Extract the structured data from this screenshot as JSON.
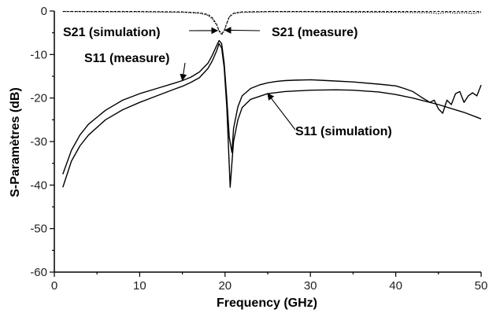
{
  "chart_data": {
    "type": "line",
    "title": "",
    "xlabel": "Frequency (GHz)",
    "ylabel": "S-Paramètres (dB)",
    "xlim": [
      0,
      50
    ],
    "ylim": [
      -60,
      0
    ],
    "xticks": [
      0,
      10,
      20,
      30,
      40,
      50
    ],
    "yticks": [
      0,
      -10,
      -20,
      -30,
      -40,
      -50,
      -60
    ],
    "xtick_labels": [
      "0",
      "10",
      "20",
      "30",
      "40",
      "50"
    ],
    "ytick_labels": [
      "0",
      "-10",
      "-20",
      "-30",
      "-40",
      "-50",
      "-60"
    ],
    "grid": false,
    "series": [
      {
        "name": "S21 (simulation)",
        "style": "dashed",
        "x": [
          1,
          5,
          10,
          15,
          17,
          18,
          18.5,
          19,
          19.3,
          19.6,
          19.9,
          20.2,
          20.5,
          21,
          22,
          25,
          30,
          35,
          40,
          45,
          50
        ],
        "y": [
          -0.1,
          -0.1,
          -0.1,
          -0.2,
          -0.4,
          -0.8,
          -1.5,
          -3.0,
          -4.5,
          -5.2,
          -4.5,
          -2.8,
          -1.3,
          -0.5,
          -0.2,
          -0.1,
          -0.1,
          -0.1,
          -0.1,
          -0.1,
          -0.1
        ]
      },
      {
        "name": "S21 (measure)",
        "style": "dotted",
        "x": [
          1,
          5,
          10,
          15,
          17,
          18,
          18.5,
          19,
          19.3,
          19.6,
          19.9,
          20.2,
          20.5,
          21,
          22,
          25,
          30,
          35,
          40,
          44,
          45,
          46,
          47,
          48,
          49,
          50
        ],
        "y": [
          -0.1,
          -0.2,
          -0.2,
          -0.3,
          -0.5,
          -1.0,
          -1.8,
          -3.2,
          -4.6,
          -5.5,
          -4.6,
          -2.9,
          -1.4,
          -0.6,
          -0.3,
          -0.2,
          -0.2,
          -0.3,
          -0.3,
          -0.4,
          -0.6,
          -0.3,
          -0.5,
          -0.4,
          -0.6,
          -0.3
        ]
      },
      {
        "name": "S11 (measure)",
        "style": "solid",
        "x": [
          1,
          2,
          3,
          4,
          6,
          8,
          10,
          12,
          14,
          15,
          16,
          17,
          18,
          18.5,
          19,
          19.3,
          19.6,
          19.9,
          20.2,
          20.5,
          20.8,
          21,
          21.5,
          22,
          23,
          24,
          25,
          26,
          27,
          28,
          30,
          32,
          35,
          38,
          40,
          41,
          42,
          43,
          44,
          44.5,
          45,
          45.5,
          46,
          46.5,
          47,
          47.5,
          48,
          48.5,
          49,
          49.5,
          50
        ],
        "y": [
          -37.5,
          -32,
          -28.5,
          -26,
          -22.8,
          -20.5,
          -19,
          -17.8,
          -16.6,
          -16,
          -15.2,
          -14,
          -12,
          -10.2,
          -8,
          -6.8,
          -7.5,
          -12,
          -20,
          -29,
          -32.5,
          -27,
          -22,
          -19.5,
          -17.8,
          -17,
          -16.5,
          -16.2,
          -16,
          -15.9,
          -15.8,
          -16,
          -16.3,
          -16.8,
          -17.2,
          -17.8,
          -18.5,
          -19.8,
          -21,
          -20.5,
          -22.5,
          -23.5,
          -20.5,
          -21.5,
          -19,
          -18.5,
          -21,
          -19.5,
          -18.8,
          -19.5,
          -17
        ]
      },
      {
        "name": "S11 (simulation)",
        "style": "solid",
        "x": [
          1,
          2,
          3,
          4,
          6,
          8,
          10,
          12,
          14,
          15,
          16,
          17,
          18,
          18.5,
          19,
          19.3,
          19.6,
          19.9,
          20.2,
          20.4,
          20.6,
          20.8,
          21,
          21.5,
          22,
          23,
          25,
          27,
          30,
          33,
          35,
          38,
          40,
          42,
          45,
          48,
          50
        ],
        "y": [
          -40.5,
          -34.5,
          -31,
          -28.5,
          -25,
          -22.7,
          -21,
          -19.5,
          -18,
          -17.3,
          -16.4,
          -15.3,
          -13.2,
          -11.5,
          -9.2,
          -7.5,
          -8.5,
          -13,
          -22,
          -31,
          -40.5,
          -35,
          -30,
          -25,
          -22.2,
          -20.3,
          -19,
          -18.5,
          -18.2,
          -18.1,
          -18.2,
          -18.6,
          -19.2,
          -20,
          -21.5,
          -23.3,
          -24.8
        ]
      }
    ],
    "annotations": [
      {
        "text": "S21 (simulation)",
        "target_x": 19.1,
        "target_y": -4.5
      },
      {
        "text": "S21 (measure)",
        "target_x": 20.0,
        "target_y": -4.4
      },
      {
        "text": "S11 (measure)",
        "target_x": 15.0,
        "target_y": -15.9
      },
      {
        "text": "S11 (simulation)",
        "target_x": 25.0,
        "target_y": -19.0
      }
    ]
  }
}
